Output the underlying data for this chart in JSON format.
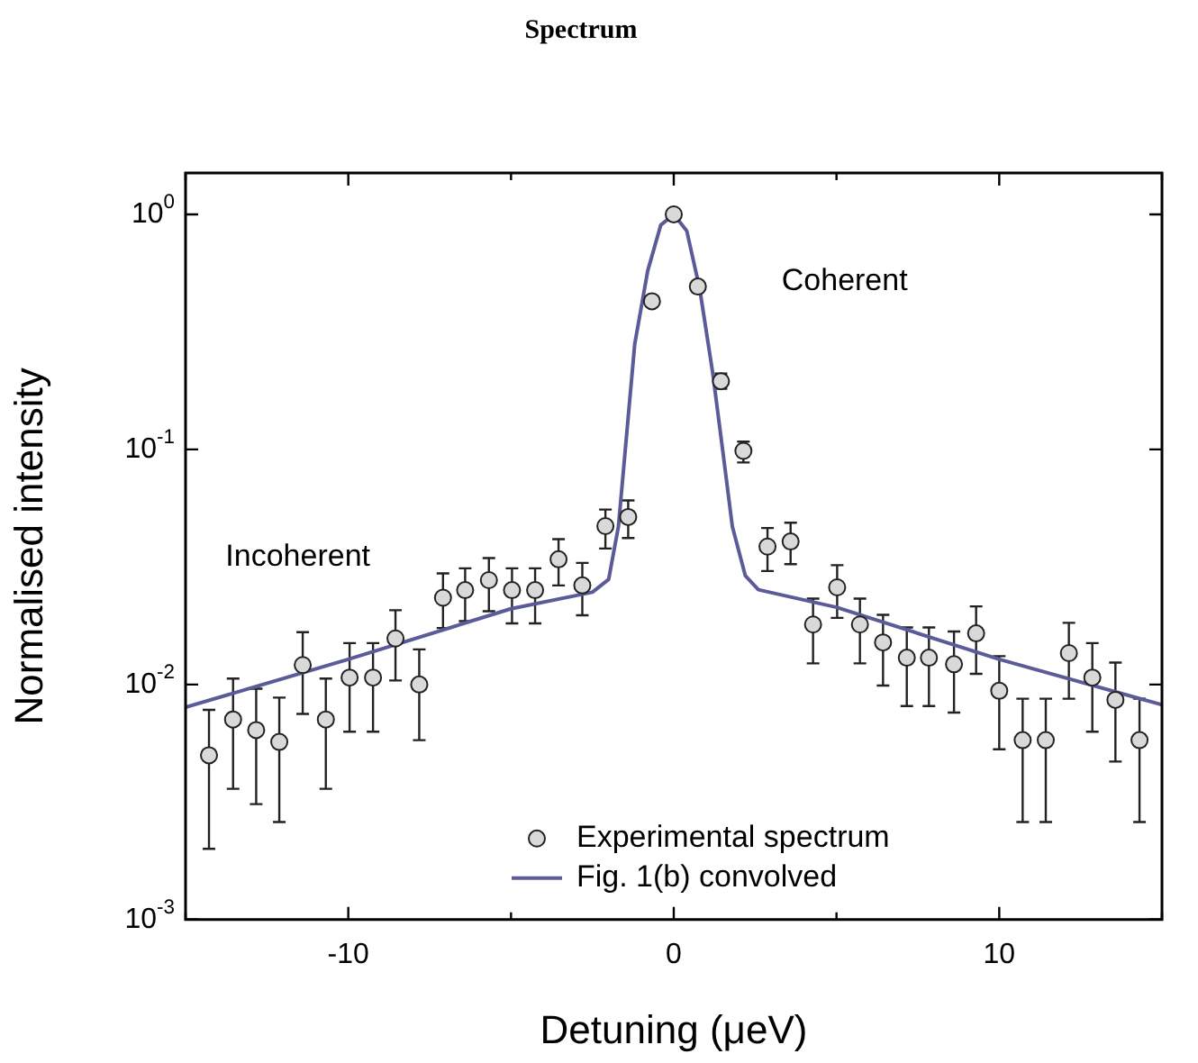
{
  "chart_data": {
    "type": "scatter",
    "title": "Spectrum",
    "xlabel": "Detuning (μeV)",
    "ylabel": "Normalised intensity",
    "xlim": [
      -15,
      15
    ],
    "xticks": [
      {
        "value": -15,
        "label": null
      },
      -10,
      {
        "value": -5,
        "label": null
      },
      0,
      {
        "value": 5,
        "label": null
      },
      10,
      {
        "value": 15,
        "label": null
      }
    ],
    "ylim": [
      0.001,
      1.5
    ],
    "yticks": [
      {
        "value": 0.001,
        "label": "10$^{-3}$"
      },
      {
        "value": 0.01,
        "label": "10$^{-2}$"
      },
      {
        "value": 0.1,
        "label": "10$^{-1}$"
      },
      {
        "value": 1,
        "label": "10$^{0}$"
      }
    ],
    "log": "y",
    "grid": false,
    "legend": "bottom",
    "annotations": [
      "Coherent",
      "Incoherent"
    ],
    "series": [
      {
        "name": "Experimental spectrum",
        "marker": "circle",
        "color": "#d9d9d9",
        "x": [
          -14.28,
          -13.54,
          -12.83,
          -12.12,
          -11.4,
          -10.69,
          -9.96,
          -9.24,
          -8.55,
          -7.82,
          -7.09,
          -6.41,
          -5.68,
          -4.97,
          -4.26,
          -3.54,
          -2.81,
          -2.1,
          -1.4,
          -0.67,
          0,
          0.74,
          1.45,
          2.14,
          2.88,
          3.59,
          4.28,
          5.02,
          5.72,
          6.43,
          7.16,
          7.84,
          8.61,
          9.29,
          10.0,
          10.72,
          11.43,
          12.14,
          12.86,
          13.57,
          14.31
        ],
        "values": [
          0.005,
          0.0071,
          0.0064,
          0.0057,
          0.0121,
          0.0071,
          0.0107,
          0.0107,
          0.0157,
          0.01,
          0.0234,
          0.0252,
          0.0278,
          0.0252,
          0.0252,
          0.0341,
          0.0264,
          0.0472,
          0.0516,
          0.427,
          1.0,
          0.493,
          0.195,
          0.0986,
          0.0386,
          0.0406,
          0.018,
          0.0259,
          0.018,
          0.0151,
          0.013,
          0.013,
          0.0122,
          0.0165,
          0.0094,
          0.0058,
          0.0058,
          0.0136,
          0.0107,
          0.0086,
          0.0058
        ],
        "errors": [
          [
            0.002,
            0.0078
          ],
          [
            0.0036,
            0.0106
          ],
          [
            0.0031,
            0.0096
          ],
          [
            0.0026,
            0.0088
          ],
          [
            0.0075,
            0.0167
          ],
          [
            0.0036,
            0.0106
          ],
          [
            0.0063,
            0.015
          ],
          [
            0.0063,
            0.015
          ],
          [
            0.0104,
            0.0207
          ],
          [
            0.0058,
            0.0141
          ],
          [
            0.0174,
            0.0297
          ],
          [
            0.0186,
            0.0312
          ],
          [
            0.0205,
            0.0345
          ],
          [
            0.0182,
            0.0312
          ],
          [
            0.0182,
            0.0312
          ],
          [
            0.0264,
            0.0415
          ],
          [
            0.0197,
            0.0329
          ],
          [
            0.0379,
            0.0555
          ],
          [
            0.042,
            0.0607
          ],
          null,
          null,
          null,
          [
            0.181,
            0.21
          ],
          [
            0.088,
            0.108
          ],
          [
            0.0304,
            0.0463
          ],
          [
            0.0325,
            0.0488
          ],
          [
            0.0123,
            0.0232
          ],
          [
            0.0192,
            0.0322
          ],
          [
            0.0123,
            0.0232
          ],
          [
            0.0099,
            0.0198
          ],
          [
            0.0081,
            0.0175
          ],
          [
            0.0081,
            0.0175
          ],
          [
            0.0076,
            0.0168
          ],
          [
            0.0111,
            0.0215
          ],
          [
            0.0053,
            0.0132
          ],
          [
            0.0026,
            0.0087
          ],
          [
            0.0026,
            0.0087
          ],
          [
            0.0087,
            0.0183
          ],
          [
            0.0063,
            0.015
          ],
          [
            0.0047,
            0.0124
          ],
          [
            0.0026,
            0.0087
          ]
        ]
      },
      {
        "name": "Fig. 1(b) convolved",
        "type": "line",
        "marker": "none",
        "line_style": "solid",
        "color": "#5b5b9a",
        "x": [
          -15,
          -10,
          -5,
          -2.5,
          -2.0,
          -1.7,
          -1.5,
          -1.2,
          -0.8,
          -0.4,
          0,
          0.4,
          0.8,
          1.2,
          1.5,
          1.8,
          2.2,
          2.6,
          5,
          10,
          15
        ],
        "values": [
          0.008,
          0.0128,
          0.021,
          0.0247,
          0.028,
          0.047,
          0.096,
          0.28,
          0.575,
          0.9,
          1.0,
          0.85,
          0.48,
          0.21,
          0.1,
          0.047,
          0.029,
          0.0253,
          0.0213,
          0.0128,
          0.0082
        ]
      }
    ]
  }
}
